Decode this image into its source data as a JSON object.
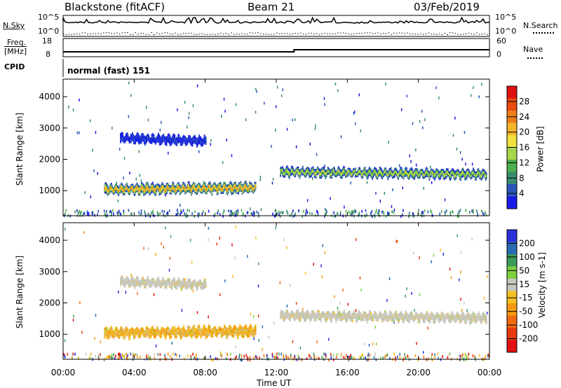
{
  "header": {
    "title": "Blackstone (fitACF)",
    "beam": "Beam 21",
    "date": "03/Feb/2019"
  },
  "noise_panel": {
    "left_label": "N.Sky",
    "right_label": "N.Search",
    "left_ticks": [
      "10^5",
      "10^0"
    ],
    "right_ticks": [
      "10^5",
      "10^0"
    ]
  },
  "freq_panel": {
    "left_label_1": "Freq.",
    "left_label_2": "[MHz]",
    "right_label": "Nave",
    "left_ticks": [
      "18",
      "8"
    ],
    "right_ticks": [
      "60",
      "0"
    ]
  },
  "cpid": {
    "label": "CPID",
    "value": "normal (fast) 151"
  },
  "chart_data": [
    {
      "type": "heatmap",
      "ylabel": "Slant Range [km]",
      "xlabel": "Time UT",
      "yticks": [
        "1000",
        "2000",
        "3000",
        "4000"
      ],
      "ylim": [
        200,
        4560
      ],
      "colorbar_label": "Power [dB]",
      "colorbar_ticks": [
        "4",
        "8",
        "12",
        "16",
        "20",
        "24",
        "28"
      ],
      "colorbar_colors": [
        "#1a1ae6",
        "#2a56b8",
        "#3a8b6e",
        "#4caf50",
        "#a8d64a",
        "#f0e040",
        "#f5b52a",
        "#f07f1a",
        "#e84a10",
        "#e01010"
      ],
      "series": [
        {
          "start_h": 2.3,
          "end_h": 10.8,
          "range_start": 1060,
          "range_end": 1120,
          "thickness": 300,
          "level": 0.82
        },
        {
          "start_h": 12.2,
          "end_h": 23.8,
          "range_start": 1620,
          "range_end": 1540,
          "thickness": 260,
          "level": 0.55
        },
        {
          "start_h": 3.2,
          "end_h": 8.0,
          "range_start": 2700,
          "range_end": 2600,
          "thickness": 260,
          "level": 0.06
        }
      ]
    },
    {
      "type": "heatmap",
      "ylabel": "Slant Range [km]",
      "xlabel": "Time UT",
      "yticks": [
        "1000",
        "2000",
        "3000",
        "4000"
      ],
      "ylim": [
        200,
        4560
      ],
      "colorbar_label": "Velocity [m s-1]",
      "colorbar_ticks": [
        "200",
        "100",
        "50",
        "15",
        "-15",
        "-50",
        "-100",
        "-200"
      ],
      "colorbar_colors": [
        "#2a30d8",
        "#2a6ab0",
        "#3c9a5a",
        "#7dd040",
        "#c8c8c0",
        "#f5c020",
        "#f59a10",
        "#f06a10",
        "#e83a10",
        "#e01010"
      ],
      "series": [
        {
          "start_h": 2.3,
          "end_h": 10.8,
          "range_start": 1060,
          "range_end": 1120,
          "thickness": 300,
          "velocity": -50
        },
        {
          "start_h": 12.2,
          "end_h": 23.8,
          "range_start": 1620,
          "range_end": 1540,
          "thickness": 260,
          "velocity": 0
        },
        {
          "start_h": 3.2,
          "end_h": 8.0,
          "range_start": 2700,
          "range_end": 2600,
          "thickness": 260,
          "velocity": 0
        }
      ]
    }
  ],
  "time_axis": {
    "label": "Time UT",
    "ticks": [
      "00:00",
      "04:00",
      "08:00",
      "12:00",
      "16:00",
      "20:00",
      "00:00"
    ],
    "range_hours": [
      0,
      24
    ]
  }
}
